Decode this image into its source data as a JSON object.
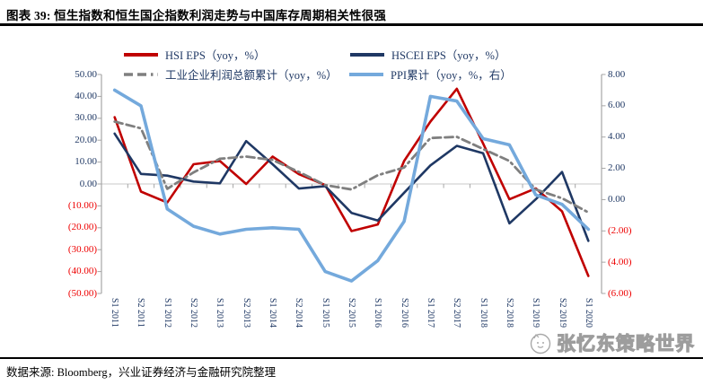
{
  "title": "图表 39: 恒生指数和恒生国企指数利润走势与中国库存周期相关性很强",
  "footer": {
    "source_text": "数据来源: Bloomberg，兴业证券经济与金融研究院整理"
  },
  "watermark": {
    "icon": "cat-logo-icon",
    "text": "张忆东策略世界"
  },
  "colors": {
    "axis_label": "#1F3864",
    "negative_label": "#EE0000",
    "axis_line": "#A6A6A6",
    "grid_line": "#C9C9C9",
    "hsi": "#C00000",
    "hscei": "#1F3864",
    "industrial": "#7F7F7F",
    "ppi": "#74A9DC"
  },
  "chart_data": {
    "type": "line",
    "title": "恒生指数和恒生国企指数利润走势与中国库存周期相关性很强",
    "legend_position": "top",
    "grid": "zero line only",
    "categories": [
      "S1 2011",
      "S2 2011",
      "S1 2012",
      "S2 2012",
      "S1 2013",
      "S2 2013",
      "S1 2014",
      "S2 2014",
      "S1 2015",
      "S2 2015",
      "S1 2016",
      "S2 2016",
      "S1 2017",
      "S2 2017",
      "S1 2018",
      "S2 2018",
      "S1 2019",
      "S2 2019",
      "S1 2020"
    ],
    "series": [
      {
        "name": "HSI EPS（yoy，%）",
        "axis": "left",
        "color": "#C00000",
        "dash": "solid",
        "width": 2.6,
        "values": [
          30.5,
          -3.5,
          -8.5,
          9,
          10.5,
          0,
          12.5,
          4.5,
          -0.5,
          -21.5,
          -18.5,
          10.5,
          28.5,
          43.5,
          18.5,
          -7,
          -2,
          -12.5,
          -42
        ]
      },
      {
        "name": "HSCEI EPS（yoy，%）",
        "axis": "left",
        "color": "#1F3864",
        "dash": "solid",
        "width": 2.6,
        "values": [
          23,
          4.6,
          3.8,
          1.1,
          0.3,
          19.6,
          9,
          -2.1,
          -1,
          -13.2,
          -16.7,
          -4,
          8.5,
          17.4,
          14,
          -18,
          -7,
          5.5,
          -26
        ]
      },
      {
        "name": "工业企业利润总额累计（yoy，%）",
        "axis": "left",
        "color": "#7F7F7F",
        "dash": "dash-dash-dot",
        "width": 2.8,
        "values": [
          28.5,
          25.4,
          -2.2,
          5.3,
          11.5,
          12.5,
          11,
          5.5,
          -0.5,
          -2.5,
          4,
          7.5,
          21,
          21.5,
          16,
          10.5,
          -2.5,
          -6.5,
          -13
        ]
      },
      {
        "name": "PPI累计（yoy，%，右）",
        "axis": "right",
        "color": "#74A9DC",
        "dash": "solid",
        "width": 3.6,
        "values": [
          7,
          6,
          -0.6,
          -1.7,
          -2.2,
          -1.9,
          -1.8,
          -1.9,
          -4.6,
          -5.2,
          -3.9,
          -1.4,
          6.6,
          6.3,
          3.9,
          3.5,
          0.3,
          -0.3,
          -1.9
        ]
      }
    ],
    "left_axis": {
      "max": 50,
      "min": -50,
      "step": 10,
      "tick_labels": [
        "50.00",
        "40.00",
        "30.00",
        "20.00",
        "10.00",
        "0.00",
        "(10.00)",
        "(20.00)",
        "(30.00)",
        "(40.00)",
        "(50.00)"
      ]
    },
    "right_axis": {
      "max": 8,
      "min": -6,
      "step": 2,
      "tick_labels": [
        "8.00",
        "6.00",
        "4.00",
        "2.00",
        "0.00",
        "(2.00)",
        "(4.00)",
        "(6.00)"
      ]
    }
  }
}
